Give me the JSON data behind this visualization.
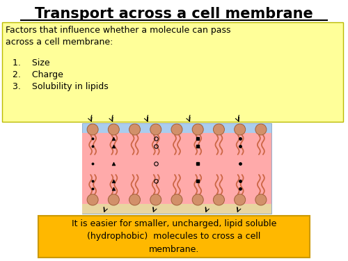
{
  "title": "Transport across a cell membrane",
  "title_fontsize": 15,
  "yellow_box_color": "#FFFF99",
  "yellow_box_border": "#BBBB00",
  "yellow_text_line1": "Factors that influence whether a molecule can pass\nacross a cell membrane:",
  "yellow_items": [
    "1.    Size",
    "2.    Charge",
    "3.    Solubility in lipids"
  ],
  "orange_box_text": "It is easier for smaller, uncharged, lipid soluble\n(hydrophobic)  molecules to cross a cell\nmembrane.",
  "orange_box_color": "#FFB800",
  "orange_box_border": "#CC9900",
  "bg_color": "#FFFFFF",
  "membrane_blue": "#AACCEE",
  "membrane_pink": "#FFAAAA",
  "membrane_tan": "#E8D5A0",
  "head_color": "#D2906A",
  "head_edge": "#A0603A",
  "tail_color": "#CC6644"
}
